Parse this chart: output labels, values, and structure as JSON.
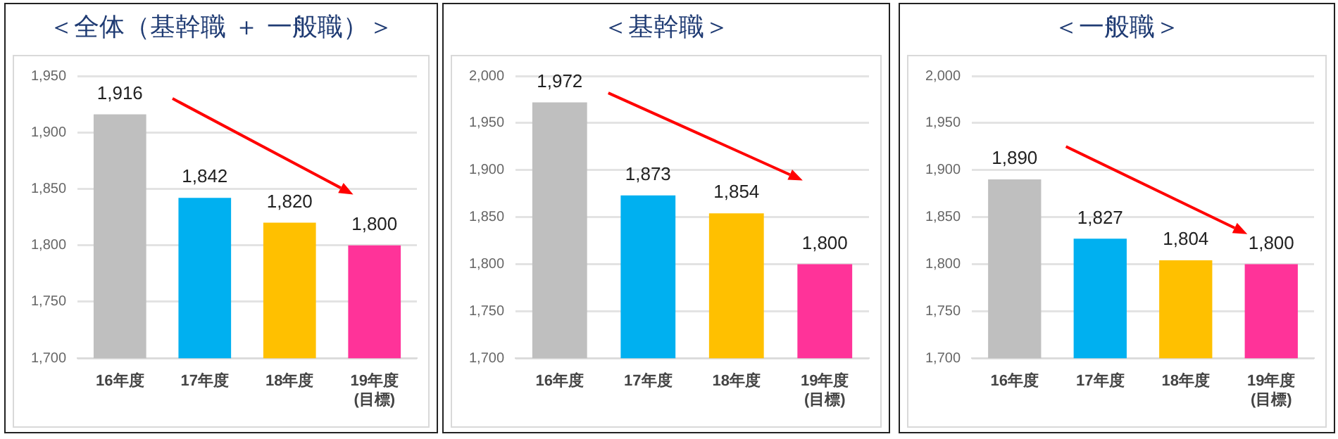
{
  "chart_data": [
    {
      "type": "bar",
      "title": "＜全体（基幹職 ＋ 一般職）＞",
      "categories": [
        "16年度",
        "17年度",
        "18年度",
        "19年度\n(目標)"
      ],
      "values": [
        1916,
        1842,
        1820,
        1800
      ],
      "value_labels": [
        "1,916",
        "1,842",
        "1,820",
        "1,800"
      ],
      "colors": [
        "#bfbfbf",
        "#00b0f0",
        "#ffc000",
        "#ff3399"
      ],
      "ylim": [
        1700,
        1950
      ],
      "yticks": [
        {
          "value": 1700,
          "label": "1,700"
        },
        {
          "value": 1750,
          "label": "1,750"
        },
        {
          "value": 1800,
          "label": "1,800"
        },
        {
          "value": 1850,
          "label": "1,850"
        },
        {
          "value": 1900,
          "label": "1,900"
        },
        {
          "value": 1950,
          "label": "1,950"
        }
      ],
      "grid": "y"
    },
    {
      "type": "bar",
      "title": "＜基幹職＞",
      "categories": [
        "16年度",
        "17年度",
        "18年度",
        "19年度\n(目標)"
      ],
      "values": [
        1972,
        1873,
        1854,
        1800
      ],
      "value_labels": [
        "1,972",
        "1,873",
        "1,854",
        "1,800"
      ],
      "colors": [
        "#bfbfbf",
        "#00b0f0",
        "#ffc000",
        "#ff3399"
      ],
      "ylim": [
        1700,
        2000
      ],
      "yticks": [
        {
          "value": 1700,
          "label": "1,700"
        },
        {
          "value": 1750,
          "label": "1,750"
        },
        {
          "value": 1800,
          "label": "1,800"
        },
        {
          "value": 1850,
          "label": "1,850"
        },
        {
          "value": 1900,
          "label": "1,900"
        },
        {
          "value": 1950,
          "label": "1,950"
        },
        {
          "value": 2000,
          "label": "2,000"
        }
      ],
      "grid": "y"
    },
    {
      "type": "bar",
      "title": "＜一般職＞",
      "categories": [
        "16年度",
        "17年度",
        "18年度",
        "19年度\n(目標)"
      ],
      "values": [
        1890,
        1827,
        1804,
        1800
      ],
      "value_labels": [
        "1,890",
        "1,827",
        "1,804",
        "1,800"
      ],
      "colors": [
        "#bfbfbf",
        "#00b0f0",
        "#ffc000",
        "#ff3399"
      ],
      "ylim": [
        1700,
        2000
      ],
      "yticks": [
        {
          "value": 1700,
          "label": "1,700"
        },
        {
          "value": 1750,
          "label": "1,750"
        },
        {
          "value": 1800,
          "label": "1,800"
        },
        {
          "value": 1850,
          "label": "1,850"
        },
        {
          "value": 1900,
          "label": "1,900"
        },
        {
          "value": 1950,
          "label": "1,950"
        },
        {
          "value": 2000,
          "label": "2,000"
        }
      ],
      "grid": "y"
    }
  ]
}
